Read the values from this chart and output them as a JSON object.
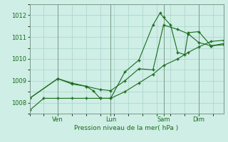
{
  "background_color": "#ceeee6",
  "grid_color": "#aad4c8",
  "line_color": "#1a6b1a",
  "marker_color": "#1a6b1a",
  "xlabel": "Pression niveau de la mer( hPa )",
  "xlabel_color": "#1a6b1a",
  "tick_color": "#1a6b1a",
  "ylim": [
    1007.5,
    1012.5
  ],
  "yticks": [
    1008,
    1009,
    1010,
    1011,
    1012
  ],
  "xtick_labels": [
    "Ven",
    "Lun",
    "Sam",
    "Dim"
  ],
  "xtick_positions": [
    16,
    46,
    76,
    96
  ],
  "xlim": [
    0,
    110
  ],
  "series1_x": [
    0,
    8,
    16,
    24,
    32,
    40,
    46,
    54,
    62,
    70,
    76,
    84,
    90,
    96,
    103,
    110
  ],
  "series1_y": [
    1007.65,
    1008.2,
    1008.2,
    1008.2,
    1008.2,
    1008.2,
    1008.2,
    1008.5,
    1008.9,
    1009.3,
    1009.7,
    1010.0,
    1010.3,
    1010.55,
    1010.8,
    1010.85
  ],
  "series2_x": [
    0,
    16,
    24,
    32,
    40,
    46,
    54,
    62,
    70,
    76,
    84,
    90,
    96,
    103,
    110
  ],
  "series2_y": [
    1008.2,
    1009.1,
    1008.9,
    1008.75,
    1008.6,
    1008.55,
    1009.0,
    1009.55,
    1009.5,
    1011.55,
    1011.35,
    1011.15,
    1010.75,
    1010.6,
    1010.7
  ],
  "series3_x": [
    0,
    16,
    24,
    32,
    36,
    40,
    46,
    54,
    62,
    70,
    74,
    76,
    80,
    84,
    88,
    90,
    96,
    103,
    110
  ],
  "series3_y": [
    1008.2,
    1009.1,
    1008.85,
    1008.75,
    1008.55,
    1008.2,
    1008.2,
    1009.4,
    1009.95,
    1011.55,
    1012.1,
    1011.9,
    1011.55,
    1010.3,
    1010.2,
    1011.2,
    1011.25,
    1010.6,
    1010.65
  ]
}
